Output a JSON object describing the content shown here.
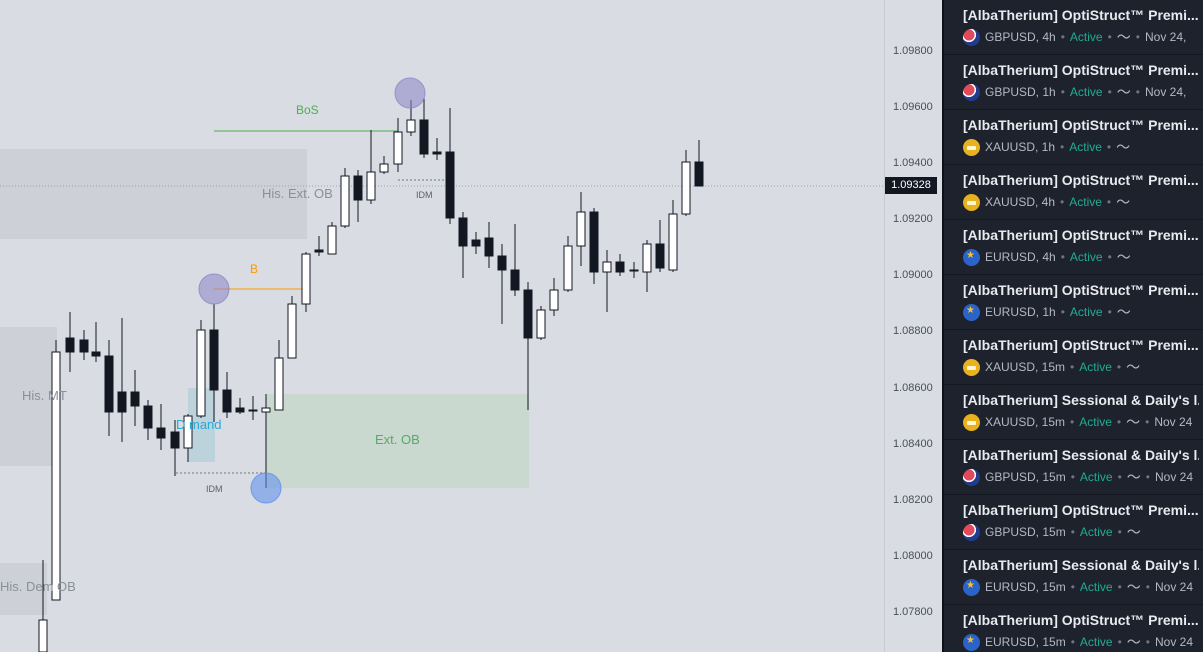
{
  "chart": {
    "current_price": "1.09328",
    "price_axis": [
      "1.09800",
      "1.09600",
      "1.09400",
      "1.09200",
      "1.09000",
      "1.08800",
      "1.08600",
      "1.08400",
      "1.08200",
      "1.08000",
      "1.07800"
    ],
    "labels": {
      "bos": "BoS",
      "b": "B",
      "idm_top": "IDM",
      "idm_bottom": "IDM",
      "his_ext_ob": "His. Ext. OB",
      "his_imt": "His.  MT",
      "demand": "D  mand",
      "ext_ob": "Ext. OB",
      "his_dem_ob": "His. Dem OB"
    },
    "colors": {
      "bull": "#ffffff",
      "bear": "#131722",
      "bos_line": "#4caf50",
      "b_line": "#ff9800",
      "circle": "#8c85c7",
      "circle_blue": "#5b8def"
    }
  },
  "alerts": [
    {
      "title": "[AlbaTherium] OptiStruct™ Premi...",
      "icon": "gbp-usd-flag-icon",
      "symbol": "GBPUSD, 4h",
      "status": "Active",
      "date": "Nov 24,"
    },
    {
      "title": "[AlbaTherium] OptiStruct™ Premi...",
      "icon": "gbp-usd-flag-icon",
      "symbol": "GBPUSD, 1h",
      "status": "Active",
      "date": "Nov 24,"
    },
    {
      "title": "[AlbaTherium] OptiStruct™ Premi...",
      "icon": "gold-icon",
      "symbol": "XAUUSD, 1h",
      "status": "Active",
      "date": ""
    },
    {
      "title": "[AlbaTherium] OptiStruct™ Premi...",
      "icon": "gold-icon",
      "symbol": "XAUUSD, 4h",
      "status": "Active",
      "date": ""
    },
    {
      "title": "[AlbaTherium] OptiStruct™ Premi...",
      "icon": "eur-usd-flag-icon",
      "symbol": "EURUSD, 4h",
      "status": "Active",
      "date": ""
    },
    {
      "title": "[AlbaTherium] OptiStruct™ Premi...",
      "icon": "eur-usd-flag-icon",
      "symbol": "EURUSD, 1h",
      "status": "Active",
      "date": ""
    },
    {
      "title": "[AlbaTherium] OptiStruct™ Premi...",
      "icon": "gold-icon",
      "symbol": "XAUUSD, 15m",
      "status": "Active",
      "date": ""
    },
    {
      "title": "[AlbaTherium] Sessional & Daily's l...",
      "icon": "gold-icon",
      "symbol": "XAUUSD, 15m",
      "status": "Active",
      "date": "Nov 24"
    },
    {
      "title": "[AlbaTherium] Sessional & Daily's l...",
      "icon": "gbp-usd-flag-icon",
      "symbol": "GBPUSD, 15m",
      "status": "Active",
      "date": "Nov 24"
    },
    {
      "title": "[AlbaTherium] OptiStruct™ Premi...",
      "icon": "gbp-usd-flag-icon",
      "symbol": "GBPUSD, 15m",
      "status": "Active",
      "date": ""
    },
    {
      "title": "[AlbaTherium] Sessional & Daily's l...",
      "icon": "eur-usd-flag-icon",
      "symbol": "EURUSD, 15m",
      "status": "Active",
      "date": "Nov 24"
    },
    {
      "title": "[AlbaTherium] OptiStruct™ Premi...",
      "icon": "eur-usd-flag-icon",
      "symbol": "EURUSD, 15m",
      "status": "Active",
      "date": "Nov 24"
    }
  ]
}
